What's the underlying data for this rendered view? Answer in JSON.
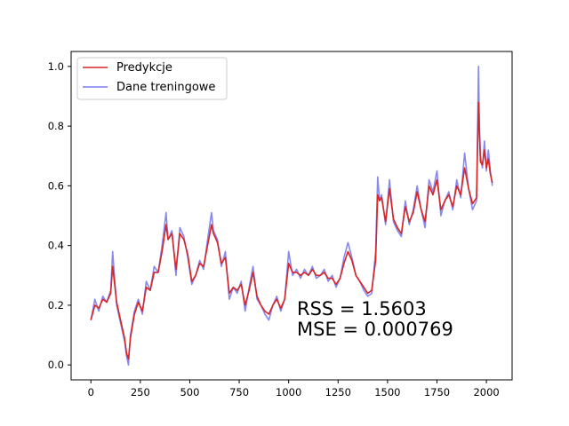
{
  "chart_data": {
    "type": "line",
    "title": "",
    "xlabel": "",
    "ylabel": "",
    "xlim": [
      -100,
      2130
    ],
    "ylim": [
      -0.05,
      1.05
    ],
    "grid": false,
    "legend_placement": "top-left",
    "x_ticks": [
      0,
      250,
      500,
      750,
      1000,
      1250,
      1500,
      1750,
      2000
    ],
    "y_ticks": [
      0.0,
      0.2,
      0.4,
      0.6,
      0.8,
      1.0
    ],
    "x_tick_labels": [
      "0",
      "250",
      "500",
      "750",
      "1000",
      "1250",
      "1500",
      "1750",
      "2000"
    ],
    "y_tick_labels": [
      "0.0",
      "0.2",
      "0.4",
      "0.6",
      "0.8",
      "1.0"
    ],
    "series": [
      {
        "name": "Dane treningowe",
        "color": "#7b7bf0",
        "x": [
          0,
          20,
          40,
          60,
          80,
          100,
          110,
          130,
          150,
          170,
          180,
          190,
          200,
          220,
          240,
          260,
          280,
          300,
          320,
          340,
          360,
          380,
          390,
          410,
          430,
          450,
          470,
          490,
          510,
          530,
          550,
          570,
          590,
          610,
          620,
          640,
          660,
          680,
          700,
          720,
          740,
          760,
          780,
          800,
          820,
          840,
          860,
          880,
          900,
          920,
          940,
          960,
          980,
          1000,
          1020,
          1040,
          1060,
          1080,
          1100,
          1120,
          1140,
          1160,
          1180,
          1200,
          1220,
          1240,
          1260,
          1280,
          1300,
          1320,
          1340,
          1360,
          1380,
          1400,
          1420,
          1440,
          1450,
          1460,
          1470,
          1490,
          1510,
          1530,
          1550,
          1570,
          1590,
          1610,
          1630,
          1650,
          1670,
          1690,
          1710,
          1730,
          1750,
          1770,
          1790,
          1810,
          1830,
          1850,
          1870,
          1890,
          1910,
          1930,
          1950,
          1960,
          1965,
          1970,
          1980,
          1990,
          2000,
          2010,
          2020,
          2030
        ],
        "y": [
          0.15,
          0.22,
          0.18,
          0.23,
          0.21,
          0.25,
          0.38,
          0.2,
          0.14,
          0.08,
          0.03,
          0.0,
          0.1,
          0.18,
          0.22,
          0.17,
          0.28,
          0.25,
          0.33,
          0.31,
          0.4,
          0.51,
          0.42,
          0.45,
          0.3,
          0.46,
          0.43,
          0.36,
          0.27,
          0.3,
          0.35,
          0.32,
          0.42,
          0.51,
          0.45,
          0.42,
          0.33,
          0.38,
          0.22,
          0.26,
          0.24,
          0.28,
          0.18,
          0.26,
          0.33,
          0.22,
          0.2,
          0.17,
          0.15,
          0.2,
          0.23,
          0.18,
          0.22,
          0.38,
          0.3,
          0.32,
          0.29,
          0.32,
          0.3,
          0.33,
          0.29,
          0.3,
          0.32,
          0.28,
          0.3,
          0.26,
          0.29,
          0.36,
          0.41,
          0.36,
          0.3,
          0.28,
          0.25,
          0.23,
          0.24,
          0.38,
          0.63,
          0.55,
          0.57,
          0.47,
          0.62,
          0.48,
          0.45,
          0.43,
          0.55,
          0.47,
          0.52,
          0.6,
          0.52,
          0.46,
          0.62,
          0.58,
          0.65,
          0.5,
          0.55,
          0.58,
          0.52,
          0.62,
          0.56,
          0.71,
          0.59,
          0.52,
          0.55,
          1.0,
          0.8,
          0.7,
          0.66,
          0.75,
          0.65,
          0.72,
          0.65,
          0.6
        ]
      },
      {
        "name": "Predykcje",
        "color": "#d62728",
        "x": [
          0,
          20,
          40,
          60,
          80,
          100,
          110,
          130,
          150,
          170,
          180,
          190,
          200,
          220,
          240,
          260,
          280,
          300,
          320,
          340,
          360,
          380,
          390,
          410,
          430,
          450,
          470,
          490,
          510,
          530,
          550,
          570,
          590,
          610,
          620,
          640,
          660,
          680,
          700,
          720,
          740,
          760,
          780,
          800,
          820,
          840,
          860,
          880,
          900,
          920,
          940,
          960,
          980,
          1000,
          1020,
          1040,
          1060,
          1080,
          1100,
          1120,
          1140,
          1160,
          1180,
          1200,
          1220,
          1240,
          1260,
          1280,
          1300,
          1320,
          1340,
          1360,
          1380,
          1400,
          1420,
          1440,
          1450,
          1460,
          1470,
          1490,
          1510,
          1530,
          1550,
          1570,
          1590,
          1610,
          1630,
          1650,
          1670,
          1690,
          1710,
          1730,
          1750,
          1770,
          1790,
          1810,
          1830,
          1850,
          1870,
          1890,
          1910,
          1930,
          1950,
          1960,
          1965,
          1970,
          1980,
          1990,
          2000,
          2010,
          2020,
          2030
        ],
        "y": [
          0.15,
          0.2,
          0.19,
          0.22,
          0.21,
          0.24,
          0.33,
          0.21,
          0.15,
          0.09,
          0.04,
          0.02,
          0.09,
          0.17,
          0.21,
          0.18,
          0.26,
          0.25,
          0.31,
          0.31,
          0.38,
          0.47,
          0.42,
          0.44,
          0.32,
          0.44,
          0.42,
          0.37,
          0.28,
          0.3,
          0.34,
          0.33,
          0.4,
          0.47,
          0.44,
          0.41,
          0.34,
          0.36,
          0.24,
          0.26,
          0.25,
          0.27,
          0.2,
          0.25,
          0.31,
          0.23,
          0.2,
          0.18,
          0.17,
          0.2,
          0.22,
          0.19,
          0.22,
          0.34,
          0.31,
          0.31,
          0.3,
          0.31,
          0.3,
          0.32,
          0.3,
          0.3,
          0.31,
          0.29,
          0.29,
          0.27,
          0.29,
          0.34,
          0.38,
          0.35,
          0.3,
          0.28,
          0.26,
          0.24,
          0.25,
          0.35,
          0.57,
          0.55,
          0.56,
          0.48,
          0.59,
          0.49,
          0.46,
          0.44,
          0.53,
          0.48,
          0.51,
          0.58,
          0.52,
          0.48,
          0.6,
          0.57,
          0.62,
          0.52,
          0.55,
          0.57,
          0.53,
          0.6,
          0.57,
          0.66,
          0.59,
          0.54,
          0.56,
          0.88,
          0.77,
          0.68,
          0.67,
          0.72,
          0.66,
          0.69,
          0.64,
          0.61
        ]
      }
    ],
    "annotations": [
      "RSS = 1.5603",
      "MSE = 0.000769"
    ]
  }
}
